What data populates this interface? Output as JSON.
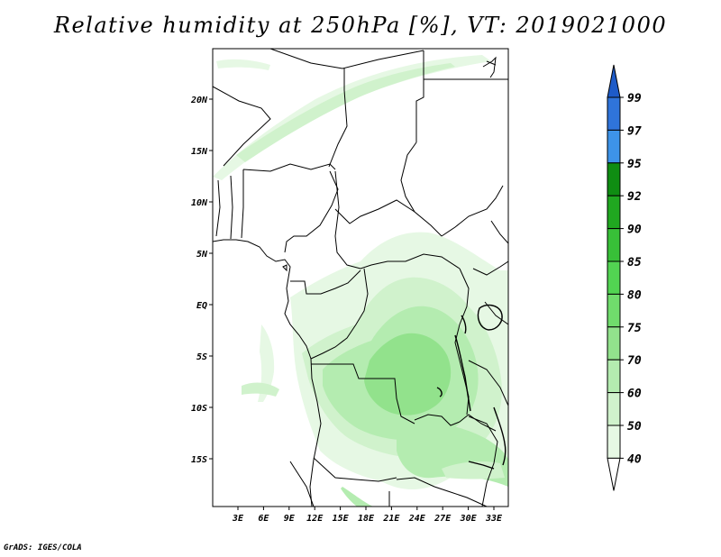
{
  "title": "Relative humidity at 250hPa [%], VT: 2019021000",
  "footer": "GrADS: IGES/COLA",
  "map": {
    "lat_labels": [
      "20N",
      "15N",
      "10N",
      "5N",
      "EQ",
      "5S",
      "10S",
      "15S"
    ],
    "lon_labels": [
      "3E",
      "6E",
      "9E",
      "12E",
      "15E",
      "18E",
      "21E",
      "24E",
      "27E",
      "30E",
      "33E"
    ]
  },
  "colorbar": {
    "levels": [
      "99",
      "97",
      "95",
      "92",
      "90",
      "85",
      "80",
      "75",
      "70",
      "60",
      "50",
      "40"
    ],
    "colors": {
      "above_99": "#1e5bc8",
      "97_99": "#2f74da",
      "95_97": "#3d93e8",
      "92_95": "#0f8d12",
      "90_92": "#20a820",
      "85_90": "#38c038",
      "80_85": "#52d452",
      "75_80": "#70dc6c",
      "70_75": "#92e28c",
      "60_70": "#b4ecb0",
      "50_60": "#d0f2cc",
      "40_50": "#e6f8e4",
      "below_40": "#ffffff"
    }
  },
  "chart_data": {
    "type": "heatmap",
    "title": "Relative humidity at 250hPa [%], VT: 2019021000",
    "variable": "Relative humidity at 250hPa",
    "units": "%",
    "valid_time": "2019021000",
    "x_ticks": [
      "3E",
      "6E",
      "9E",
      "12E",
      "15E",
      "18E",
      "21E",
      "24E",
      "27E",
      "30E",
      "33E"
    ],
    "y_ticks": [
      "20N",
      "15N",
      "10N",
      "5N",
      "EQ",
      "5S",
      "10S",
      "15S"
    ],
    "color_levels": [
      40,
      50,
      60,
      70,
      75,
      80,
      85,
      90,
      92,
      95,
      97,
      99
    ]
  }
}
